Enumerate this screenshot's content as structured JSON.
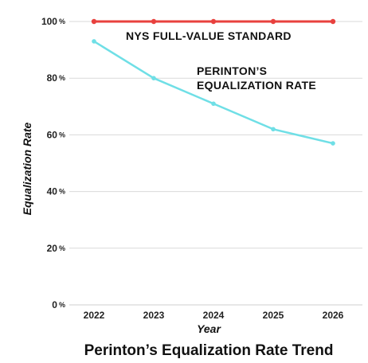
{
  "chart_data": {
    "type": "line",
    "title": "Perinton’s Equalization Rate Trend",
    "xlabel": "Year",
    "ylabel": "Equalization Rate",
    "categories": [
      "2022",
      "2023",
      "2024",
      "2025",
      "2026"
    ],
    "ylim": [
      0,
      100
    ],
    "yticks": [
      0,
      20,
      40,
      60,
      80,
      100
    ],
    "y_unit": "%",
    "grid": true,
    "series": [
      {
        "name": "NYS FULL-VALUE STANDARD",
        "values": [
          100,
          100,
          100,
          100,
          100
        ],
        "color": "#e8413e"
      },
      {
        "name": "PERINTON’S EQUALIZATION RATE",
        "values": [
          93,
          80,
          71,
          62,
          57
        ],
        "color": "#6fdfe6"
      }
    ],
    "annotations": [
      {
        "text": "NYS FULL-VALUE STANDARD",
        "series": 0
      },
      {
        "text": "PERINTON’S",
        "series": 1
      },
      {
        "text": "EQUALIZATION RATE",
        "series": 1
      }
    ]
  },
  "colors": {
    "grid": "#d9d9d9",
    "axis": "#cfcfcf"
  }
}
